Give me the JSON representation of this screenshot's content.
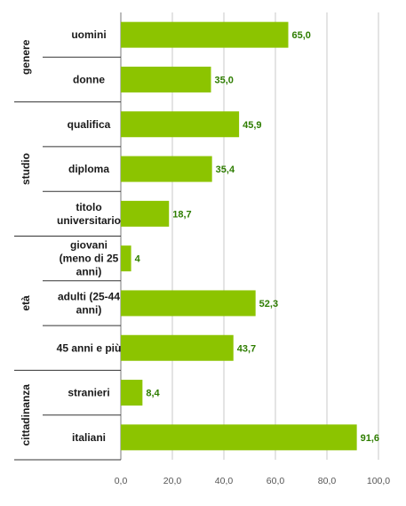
{
  "colors": {
    "bar": "#8cc400",
    "value_label": "#2e7d00",
    "grid": "#c8c8c8",
    "axis": "#7a7a7a",
    "separator": "#333333"
  },
  "chart_data": {
    "type": "bar",
    "orientation": "horizontal",
    "title": "",
    "xlabel": "",
    "ylabel": "",
    "xlim": [
      0,
      100
    ],
    "x_ticks": [
      "0,0",
      "20,0",
      "40,0",
      "60,0",
      "80,0",
      "100,0"
    ],
    "x_tick_values": [
      0,
      20,
      40,
      60,
      80,
      100
    ],
    "grid": true,
    "legend": "none",
    "groups": [
      {
        "name": "genere",
        "categories": [
          {
            "label": [
              "uomini"
            ],
            "value": 65.0,
            "value_label": "65,0"
          },
          {
            "label": [
              "donne"
            ],
            "value": 35.0,
            "value_label": "35,0"
          }
        ]
      },
      {
        "name": "studio",
        "categories": [
          {
            "label": [
              "qualifica"
            ],
            "value": 45.9,
            "value_label": "45,9"
          },
          {
            "label": [
              "diploma"
            ],
            "value": 35.4,
            "value_label": "35,4"
          },
          {
            "label": [
              "titolo",
              "universitario"
            ],
            "value": 18.7,
            "value_label": "18,7"
          }
        ]
      },
      {
        "name": "età",
        "categories": [
          {
            "label": [
              "giovani",
              "(meno di 25",
              "anni)"
            ],
            "value": 4,
            "value_label": "4"
          },
          {
            "label": [
              "adulti (25-44",
              "anni)"
            ],
            "value": 52.3,
            "value_label": "52,3"
          },
          {
            "label": [
              "45 anni e più"
            ],
            "value": 43.7,
            "value_label": "43,7"
          }
        ]
      },
      {
        "name": "cittadinanza",
        "categories": [
          {
            "label": [
              "stranieri"
            ],
            "value": 8.4,
            "value_label": "8,4"
          },
          {
            "label": [
              "italiani"
            ],
            "value": 91.6,
            "value_label": "91,6"
          }
        ]
      }
    ]
  }
}
